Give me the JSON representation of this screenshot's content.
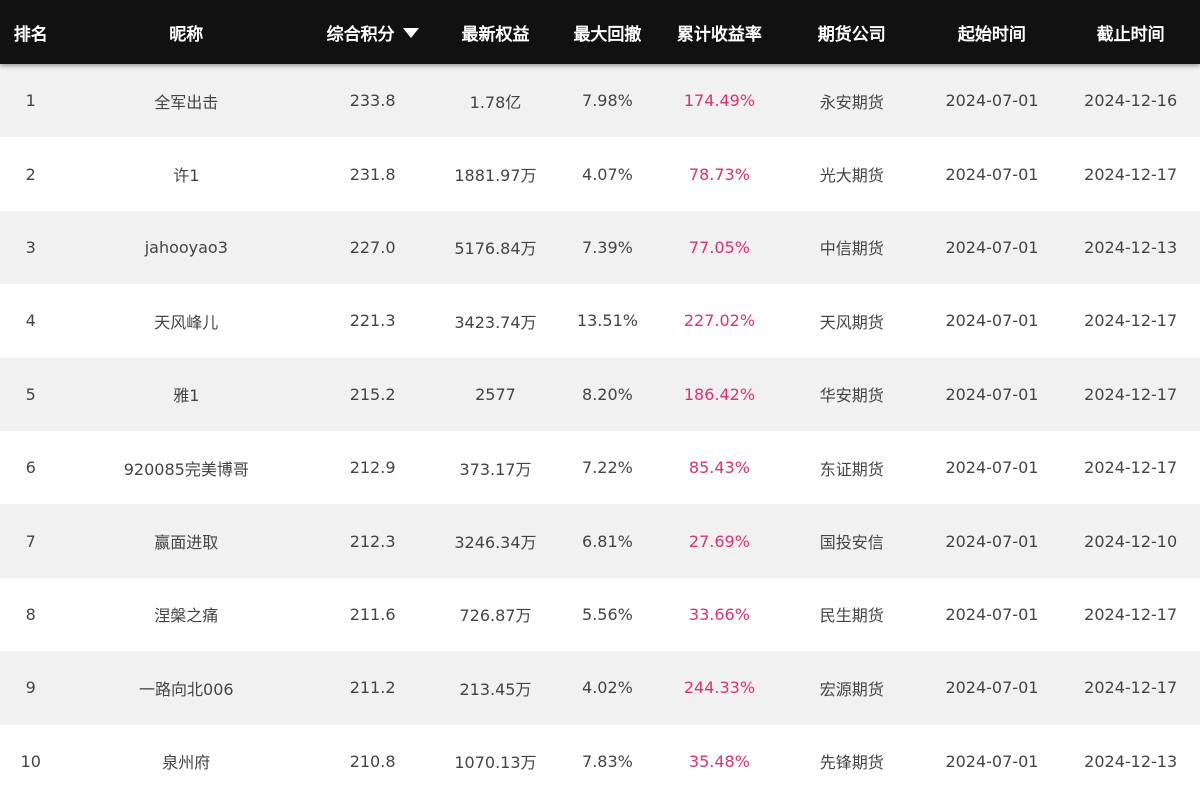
{
  "header": {
    "rank": "排名",
    "nickname": "昵称",
    "score": "综合积分",
    "equity": "最新权益",
    "drawdown": "最大回撤",
    "return_rate": "累计收益率",
    "company": "期货公司",
    "start": "起始时间",
    "end": "截止时间"
  },
  "colors": {
    "header_bg": "#111111",
    "return_rate": "#e0306f",
    "row_alt": "#f1f1f1"
  },
  "rows": [
    {
      "rank": "1",
      "nickname": "全军出击",
      "score": "233.8",
      "equity": "1.78亿",
      "drawdown": "7.98%",
      "return_rate": "174.49%",
      "company": "永安期货",
      "start": "2024-07-01",
      "end": "2024-12-16"
    },
    {
      "rank": "2",
      "nickname": "许1",
      "score": "231.8",
      "equity": "1881.97万",
      "drawdown": "4.07%",
      "return_rate": "78.73%",
      "company": "光大期货",
      "start": "2024-07-01",
      "end": "2024-12-17"
    },
    {
      "rank": "3",
      "nickname": "jahooyao3",
      "score": "227.0",
      "equity": "5176.84万",
      "drawdown": "7.39%",
      "return_rate": "77.05%",
      "company": "中信期货",
      "start": "2024-07-01",
      "end": "2024-12-13"
    },
    {
      "rank": "4",
      "nickname": "天风峰儿",
      "score": "221.3",
      "equity": "3423.74万",
      "drawdown": "13.51%",
      "return_rate": "227.02%",
      "company": "天风期货",
      "start": "2024-07-01",
      "end": "2024-12-17"
    },
    {
      "rank": "5",
      "nickname": "雅1",
      "score": "215.2",
      "equity": "2577",
      "drawdown": "8.20%",
      "return_rate": "186.42%",
      "company": "华安期货",
      "start": "2024-07-01",
      "end": "2024-12-17"
    },
    {
      "rank": "6",
      "nickname": "920085完美博哥",
      "score": "212.9",
      "equity": "373.17万",
      "drawdown": "7.22%",
      "return_rate": "85.43%",
      "company": "东证期货",
      "start": "2024-07-01",
      "end": "2024-12-17"
    },
    {
      "rank": "7",
      "nickname": "赢面进取",
      "score": "212.3",
      "equity": "3246.34万",
      "drawdown": "6.81%",
      "return_rate": "27.69%",
      "company": "国投安信",
      "start": "2024-07-01",
      "end": "2024-12-10"
    },
    {
      "rank": "8",
      "nickname": "涅槃之痛",
      "score": "211.6",
      "equity": "726.87万",
      "drawdown": "5.56%",
      "return_rate": "33.66%",
      "company": "民生期货",
      "start": "2024-07-01",
      "end": "2024-12-17"
    },
    {
      "rank": "9",
      "nickname": "一路向北006",
      "score": "211.2",
      "equity": "213.45万",
      "drawdown": "4.02%",
      "return_rate": "244.33%",
      "company": "宏源期货",
      "start": "2024-07-01",
      "end": "2024-12-17"
    },
    {
      "rank": "10",
      "nickname": "泉州府",
      "score": "210.8",
      "equity": "1070.13万",
      "drawdown": "7.83%",
      "return_rate": "35.48%",
      "company": "先锋期货",
      "start": "2024-07-01",
      "end": "2024-12-13"
    }
  ]
}
